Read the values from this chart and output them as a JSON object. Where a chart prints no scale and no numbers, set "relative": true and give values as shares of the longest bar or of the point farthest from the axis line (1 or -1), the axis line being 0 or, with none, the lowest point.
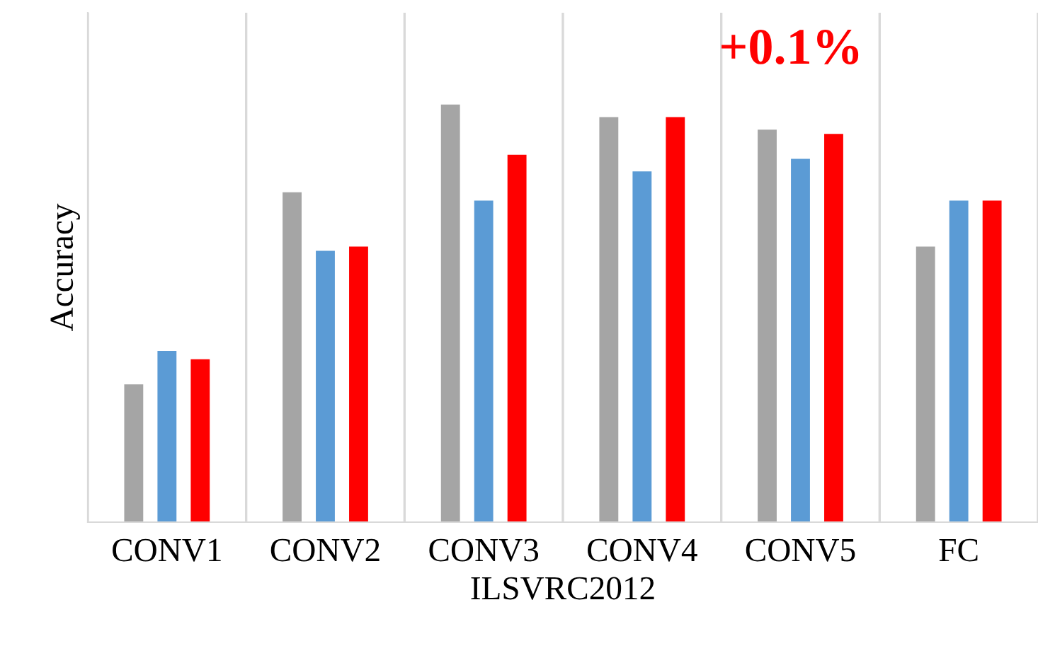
{
  "chart_data": {
    "type": "bar",
    "relative": true,
    "xlabel": "ILSVRC2012",
    "ylabel": "Accuracy",
    "categories": [
      "CONV1",
      "CONV2",
      "CONV3",
      "CONV4",
      "CONV5",
      "FC"
    ],
    "series": [
      {
        "color": "#a5a5a5",
        "values": [
          0.33,
          0.79,
          1,
          0.97,
          0.94,
          0.66
        ]
      },
      {
        "color": "#5b9bd5",
        "values": [
          0.41,
          0.65,
          0.77,
          0.84,
          0.87,
          0.77
        ]
      },
      {
        "color": "#ff0000",
        "values": [
          0.39,
          0.66,
          0.88,
          0.97,
          0.93,
          0.77
        ]
      }
    ],
    "annotations": [
      "+0.1%"
    ],
    "grid": "x",
    "legend": false
  }
}
